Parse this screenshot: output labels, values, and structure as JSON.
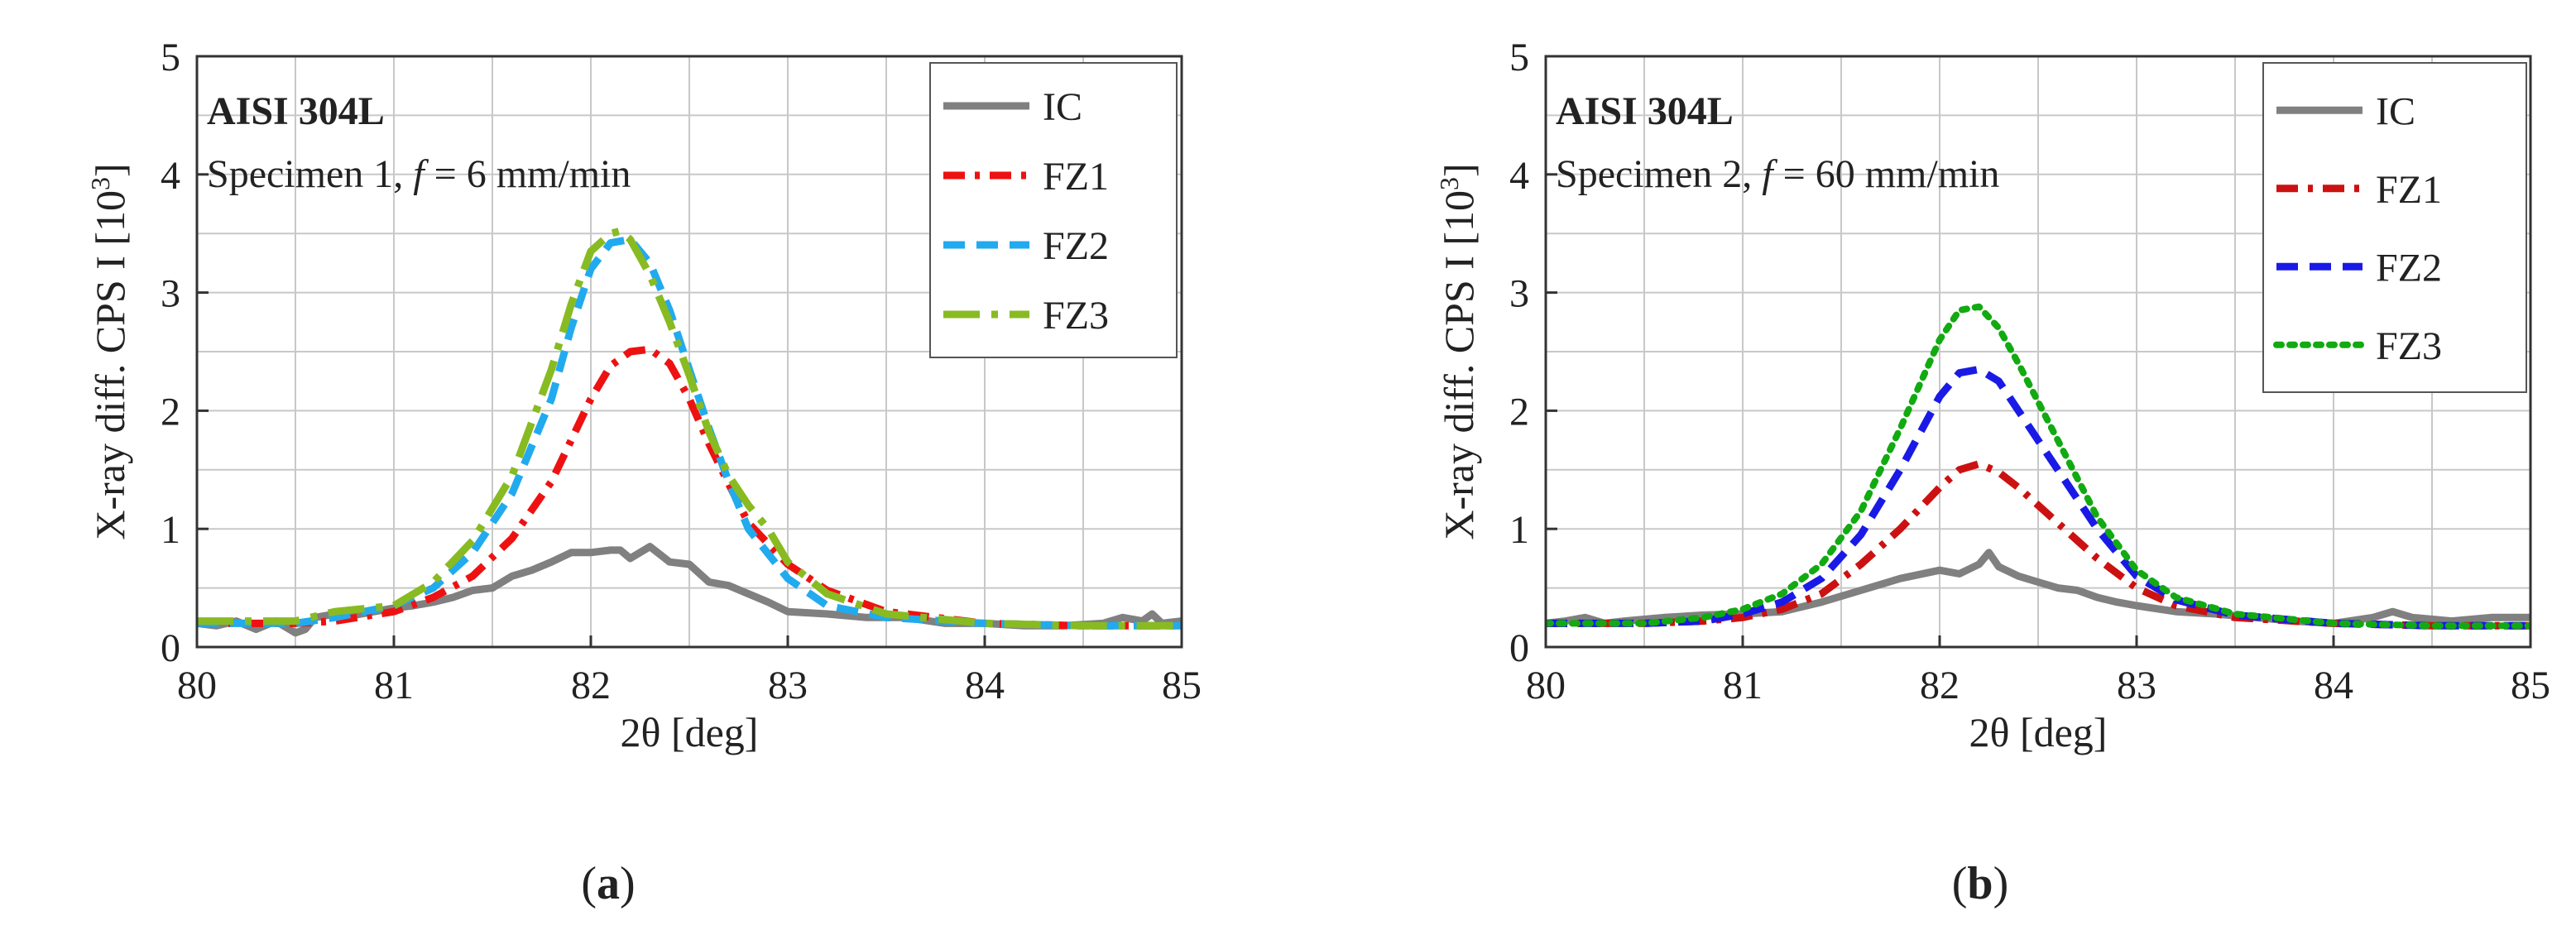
{
  "chart_data": [
    {
      "type": "line",
      "panel_label_open": "(",
      "panel_label_letter": "a",
      "panel_label_close": ")",
      "annotation_title": "AISI 304L",
      "annotation_text": "Specimen 1, ",
      "annotation_f": "f",
      "annotation_rest": " = 6 mm/min",
      "xlabel": "2θ [deg]",
      "ylabel_main": "X-ray diff. CPS I [10",
      "ylabel_sup": "3",
      "ylabel_close": "]",
      "xlim": [
        80,
        85
      ],
      "ylim": [
        0,
        5
      ],
      "xticks": [
        80,
        81,
        82,
        83,
        84,
        85
      ],
      "yticks": [
        0,
        1,
        2,
        3,
        4,
        5
      ],
      "grid": true,
      "legend_position": "top-right",
      "series": [
        {
          "name": "IC",
          "color": "#808080",
          "dash": "solid",
          "x": [
            80.0,
            80.1,
            80.2,
            80.3,
            80.4,
            80.5,
            80.55,
            80.6,
            80.7,
            80.8,
            80.9,
            81.0,
            81.1,
            81.2,
            81.3,
            81.4,
            81.5,
            81.6,
            81.7,
            81.8,
            81.9,
            82.0,
            82.1,
            82.15,
            82.2,
            82.3,
            82.4,
            82.5,
            82.6,
            82.7,
            82.8,
            82.9,
            83.0,
            83.2,
            83.4,
            83.6,
            83.8,
            84.0,
            84.2,
            84.4,
            84.6,
            84.7,
            84.8,
            84.85,
            84.9,
            85.0
          ],
          "y": [
            0.2,
            0.18,
            0.22,
            0.15,
            0.22,
            0.12,
            0.15,
            0.25,
            0.28,
            0.27,
            0.3,
            0.33,
            0.35,
            0.38,
            0.42,
            0.48,
            0.5,
            0.6,
            0.65,
            0.72,
            0.8,
            0.8,
            0.82,
            0.82,
            0.75,
            0.85,
            0.72,
            0.7,
            0.55,
            0.52,
            0.45,
            0.38,
            0.3,
            0.28,
            0.25,
            0.25,
            0.2,
            0.2,
            0.18,
            0.18,
            0.2,
            0.25,
            0.22,
            0.28,
            0.2,
            0.22
          ]
        },
        {
          "name": "FZ1",
          "color": "#ee1111",
          "dash": "dashdot",
          "x": [
            80.0,
            80.5,
            80.7,
            81.0,
            81.2,
            81.4,
            81.6,
            81.8,
            81.9,
            82.0,
            82.1,
            82.2,
            82.3,
            82.4,
            82.5,
            82.6,
            82.7,
            82.8,
            83.0,
            83.2,
            83.5,
            84.0,
            84.5,
            85.0
          ],
          "y": [
            0.2,
            0.2,
            0.22,
            0.3,
            0.42,
            0.6,
            0.92,
            1.4,
            1.75,
            2.1,
            2.38,
            2.5,
            2.52,
            2.4,
            2.1,
            1.72,
            1.38,
            1.05,
            0.7,
            0.48,
            0.3,
            0.2,
            0.18,
            0.18
          ]
        },
        {
          "name": "FZ2",
          "color": "#22aaee",
          "dash": "dash",
          "x": [
            80.0,
            80.5,
            80.7,
            81.0,
            81.2,
            81.4,
            81.6,
            81.8,
            81.9,
            82.0,
            82.1,
            82.2,
            82.3,
            82.4,
            82.5,
            82.6,
            82.7,
            82.8,
            83.0,
            83.2,
            83.5,
            84.0,
            84.5,
            85.0
          ],
          "y": [
            0.2,
            0.2,
            0.25,
            0.35,
            0.5,
            0.8,
            1.3,
            2.1,
            2.7,
            3.2,
            3.42,
            3.45,
            3.25,
            2.85,
            2.35,
            1.85,
            1.4,
            1.0,
            0.58,
            0.35,
            0.25,
            0.2,
            0.18,
            0.18
          ]
        },
        {
          "name": "FZ3",
          "color": "#88bb22",
          "dash": "longdashdot",
          "x": [
            80.0,
            80.5,
            80.7,
            81.0,
            81.2,
            81.4,
            81.6,
            81.8,
            81.9,
            82.0,
            82.1,
            82.15,
            82.2,
            82.3,
            82.4,
            82.5,
            82.6,
            82.7,
            82.8,
            82.9,
            83.0,
            83.2,
            83.5,
            84.0,
            84.5,
            85.0
          ],
          "y": [
            0.22,
            0.22,
            0.3,
            0.35,
            0.55,
            0.9,
            1.45,
            2.35,
            2.9,
            3.35,
            3.5,
            3.52,
            3.45,
            3.15,
            2.75,
            2.3,
            1.82,
            1.45,
            1.2,
            1.0,
            0.72,
            0.45,
            0.28,
            0.2,
            0.18,
            0.18
          ]
        }
      ]
    },
    {
      "type": "line",
      "panel_label_open": "(",
      "panel_label_letter": "b",
      "panel_label_close": ")",
      "annotation_title": "AISI 304L",
      "annotation_text": "Specimen 2, ",
      "annotation_f": "f",
      "annotation_rest": " = 60 mm/min",
      "xlabel": "2θ [deg]",
      "ylabel_main": "X-ray diff. CPS I [10",
      "ylabel_sup": "3",
      "ylabel_close": "]",
      "xlim": [
        80,
        85
      ],
      "ylim": [
        0,
        5
      ],
      "xticks": [
        80,
        81,
        82,
        83,
        84,
        85
      ],
      "yticks": [
        0,
        1,
        2,
        3,
        4,
        5
      ],
      "grid": true,
      "legend_position": "top-right",
      "series": [
        {
          "name": "IC",
          "color": "#808080",
          "dash": "solid",
          "x": [
            80.0,
            80.1,
            80.2,
            80.3,
            80.4,
            80.6,
            80.8,
            81.0,
            81.2,
            81.4,
            81.6,
            81.8,
            82.0,
            82.1,
            82.2,
            82.25,
            82.3,
            82.4,
            82.5,
            82.6,
            82.7,
            82.8,
            82.9,
            83.0,
            83.2,
            83.4,
            83.6,
            83.8,
            84.0,
            84.2,
            84.3,
            84.4,
            84.6,
            84.8,
            85.0
          ],
          "y": [
            0.2,
            0.22,
            0.25,
            0.2,
            0.22,
            0.25,
            0.27,
            0.28,
            0.3,
            0.38,
            0.48,
            0.58,
            0.65,
            0.62,
            0.7,
            0.8,
            0.68,
            0.6,
            0.55,
            0.5,
            0.48,
            0.42,
            0.38,
            0.35,
            0.3,
            0.28,
            0.25,
            0.22,
            0.2,
            0.25,
            0.3,
            0.25,
            0.22,
            0.25,
            0.25
          ]
        },
        {
          "name": "FZ1",
          "color": "#cc1111",
          "dash": "dashdot",
          "x": [
            80.0,
            80.5,
            80.8,
            81.0,
            81.2,
            81.4,
            81.6,
            81.8,
            82.0,
            82.1,
            82.2,
            82.3,
            82.4,
            82.6,
            82.8,
            83.0,
            83.2,
            83.5,
            84.0,
            84.5,
            85.0
          ],
          "y": [
            0.2,
            0.2,
            0.22,
            0.25,
            0.32,
            0.45,
            0.7,
            1.0,
            1.35,
            1.5,
            1.55,
            1.48,
            1.35,
            1.05,
            0.75,
            0.5,
            0.35,
            0.25,
            0.2,
            0.18,
            0.18
          ]
        },
        {
          "name": "FZ2",
          "color": "#1a1ae6",
          "dash": "dash",
          "x": [
            80.0,
            80.5,
            80.8,
            81.0,
            81.2,
            81.4,
            81.6,
            81.8,
            82.0,
            82.1,
            82.2,
            82.3,
            82.4,
            82.6,
            82.8,
            83.0,
            83.2,
            83.5,
            84.0,
            84.5,
            85.0
          ],
          "y": [
            0.2,
            0.2,
            0.22,
            0.28,
            0.38,
            0.58,
            0.95,
            1.5,
            2.12,
            2.32,
            2.35,
            2.25,
            2.0,
            1.5,
            1.0,
            0.6,
            0.4,
            0.27,
            0.2,
            0.18,
            0.18
          ]
        },
        {
          "name": "FZ3",
          "color": "#11aa11",
          "dash": "dot",
          "x": [
            80.0,
            80.5,
            80.8,
            81.0,
            81.2,
            81.4,
            81.6,
            81.8,
            82.0,
            82.1,
            82.2,
            82.3,
            82.4,
            82.6,
            82.8,
            83.0,
            83.2,
            83.5,
            84.0,
            84.5,
            85.0
          ],
          "y": [
            0.2,
            0.2,
            0.25,
            0.32,
            0.45,
            0.7,
            1.15,
            1.85,
            2.6,
            2.85,
            2.88,
            2.7,
            2.4,
            1.75,
            1.1,
            0.65,
            0.42,
            0.28,
            0.2,
            0.18,
            0.18
          ]
        }
      ]
    }
  ]
}
